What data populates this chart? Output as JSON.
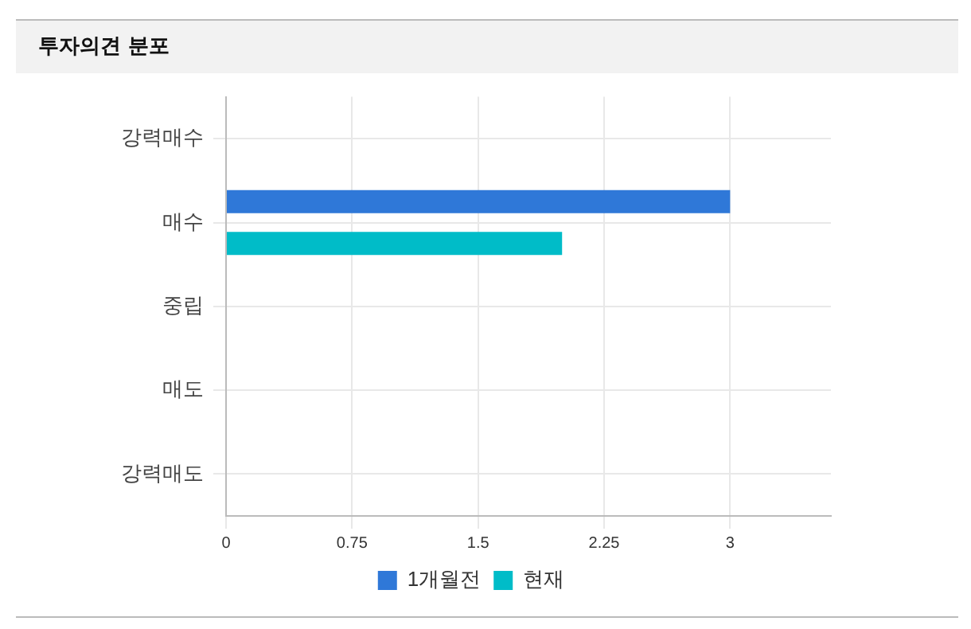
{
  "chart_data": {
    "type": "bar",
    "orientation": "horizontal",
    "title": "투자의견 분포",
    "categories": [
      "강력매수",
      "매수",
      "중립",
      "매도",
      "강력매도"
    ],
    "series": [
      {
        "name": "1개월전",
        "color": "#2f78d8",
        "values": [
          0,
          3,
          0,
          0,
          0
        ]
      },
      {
        "name": "현재",
        "color": "#00bcc8",
        "values": [
          0,
          2,
          0,
          0,
          0
        ]
      }
    ],
    "xlim": [
      0,
      3.6
    ],
    "xticks": [
      0,
      0.75,
      1.5,
      2.25,
      3
    ],
    "grid": true,
    "legend": "bottom"
  }
}
